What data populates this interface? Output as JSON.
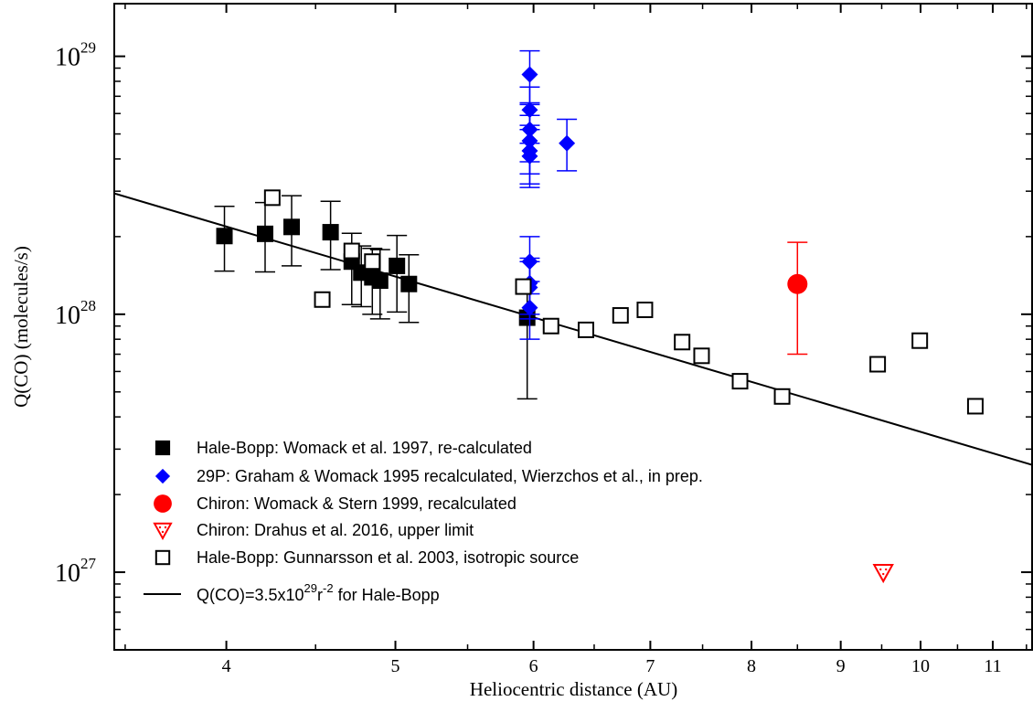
{
  "chart_data": {
    "type": "scatter",
    "x_axis": {
      "label": "Heliocentric distance (AU)",
      "scale": "log",
      "range": [
        3.45,
        11.6
      ],
      "ticks": [
        "4",
        "5",
        "6",
        "7",
        "8",
        "9",
        "10",
        "11"
      ]
    },
    "y_axis": {
      "label": "Q(CO) (molecules/s)",
      "scale": "log",
      "range": [
        5e+26,
        1.6e+29
      ],
      "ticks": [
        {
          "base": "10",
          "exp": "27",
          "value": 1e+27
        },
        {
          "base": "10",
          "exp": "28",
          "value": 1e+28
        },
        {
          "base": "10",
          "exp": "29",
          "value": 1e+29
        }
      ]
    },
    "grid": false,
    "legend_position": "bottom-left",
    "series": [
      {
        "name": "Hale-Bopp: Womack et al. 1997, re-calculated",
        "marker": "filled-square",
        "color": "#000000",
        "points": [
          {
            "x": 3.99,
            "y": 2.01e+28,
            "lo": 1.47e+28,
            "hi": 2.62e+28
          },
          {
            "x": 4.21,
            "y": 2.05e+28,
            "lo": 1.46e+28,
            "hi": 2.71e+28
          },
          {
            "x": 4.36,
            "y": 2.18e+28,
            "lo": 1.54e+28,
            "hi": 2.88e+28
          },
          {
            "x": 4.59,
            "y": 2.08e+28,
            "lo": 1.49e+28,
            "hi": 2.74e+28
          },
          {
            "x": 4.72,
            "y": 1.6e+28,
            "lo": 1.09e+28,
            "hi": 2.06e+28
          },
          {
            "x": 4.78,
            "y": 1.45e+28,
            "lo": 1.07e+28,
            "hi": 1.84e+28
          },
          {
            "x": 4.85,
            "y": 1.39e+28,
            "lo": 1e+28,
            "hi": 1.8e+28
          },
          {
            "x": 4.9,
            "y": 1.35e+28,
            "lo": 9.6e+27,
            "hi": 1.78e+28
          },
          {
            "x": 5.01,
            "y": 1.54e+28,
            "lo": 1.02e+28,
            "hi": 2.02e+28
          },
          {
            "x": 5.09,
            "y": 1.31e+28,
            "lo": 9.3e+27,
            "hi": 1.7e+28
          },
          {
            "x": 5.95,
            "y": 9.7e+27,
            "lo": 4.7e+27,
            "hi": 1.33e+28
          }
        ]
      },
      {
        "name": "29P: Graham & Womack 1995 recalculated, Wierzchos et al., in prep.",
        "marker": "diamond",
        "color": "#0000ff",
        "points": [
          {
            "x": 5.97,
            "y": 8.5e+28,
            "lo": 6.6e+28,
            "hi": 1.05e+29
          },
          {
            "x": 5.97,
            "y": 6.2e+28,
            "lo": 4.6e+28,
            "hi": 7.6e+28
          },
          {
            "x": 5.97,
            "y": 5.2e+28,
            "lo": 3.9e+28,
            "hi": 6.5e+28
          },
          {
            "x": 5.97,
            "y": 4.7e+28,
            "lo": 3.5e+28,
            "hi": 5.9e+28
          },
          {
            "x": 5.97,
            "y": 4.3e+28,
            "lo": 3.2e+28,
            "hi": 5.4e+28
          },
          {
            "x": 5.97,
            "y": 4.1e+28,
            "lo": 3.1e+28,
            "hi": 5.2e+28
          },
          {
            "x": 6.27,
            "y": 4.6e+28,
            "lo": 3.6e+28,
            "hi": 5.7e+28
          },
          {
            "x": 5.97,
            "y": 1.6e+28,
            "lo": 1.2e+28,
            "hi": 2e+28
          },
          {
            "x": 5.97,
            "y": 1.32e+28,
            "lo": 1e+28,
            "hi": 1.65e+28
          },
          {
            "x": 5.97,
            "y": 1.27e+28,
            "lo": 9.6e+27,
            "hi": 1.6e+28
          },
          {
            "x": 5.97,
            "y": 1.06e+28,
            "lo": 8e+27,
            "hi": 1.34e+28
          }
        ]
      },
      {
        "name": "Chiron: Womack & Stern 1999, recalculated",
        "marker": "circle",
        "color": "#ff0000",
        "points": [
          {
            "x": 8.5,
            "y": 1.31e+28,
            "lo": 7e+27,
            "hi": 1.9e+28
          }
        ]
      },
      {
        "name": "Chiron: Drahus et al. 2016, upper limit",
        "marker": "triangle-down",
        "color": "#ff0000",
        "points": [
          {
            "x": 9.52,
            "y": 1e+27
          }
        ]
      },
      {
        "name": "Hale-Bopp: Gunnarsson et al. 2003, isotropic source",
        "marker": "open-square",
        "color": "#000000",
        "points": [
          {
            "x": 4.25,
            "y": 2.83e+28
          },
          {
            "x": 4.54,
            "y": 1.14e+28
          },
          {
            "x": 4.72,
            "y": 1.76e+28
          },
          {
            "x": 4.85,
            "y": 1.6e+28
          },
          {
            "x": 5.92,
            "y": 1.28e+28
          },
          {
            "x": 6.14,
            "y": 9e+27
          },
          {
            "x": 6.43,
            "y": 8.7e+27
          },
          {
            "x": 6.73,
            "y": 9.9e+27
          },
          {
            "x": 6.95,
            "y": 1.04e+28
          },
          {
            "x": 7.3,
            "y": 7.8e+27
          },
          {
            "x": 7.49,
            "y": 6.9e+27
          },
          {
            "x": 7.88,
            "y": 5.5e+27
          },
          {
            "x": 8.33,
            "y": 4.8e+27
          },
          {
            "x": 9.45,
            "y": 6.4e+27
          },
          {
            "x": 9.99,
            "y": 7.9e+27
          },
          {
            "x": 10.75,
            "y": 4.4e+27
          }
        ]
      }
    ],
    "fit_line": {
      "name": "Q(CO)=3.5x10^29 r^-2 for Hale-Bopp",
      "coefficient": 3.5e+29,
      "exponent": -2,
      "color": "#000000",
      "x_range": [
        3.45,
        11.6
      ]
    },
    "legend": {
      "fit_label_parts": [
        "Q(CO)=3.5x10",
        "29",
        "r",
        "-2",
        " for Hale-Bopp"
      ]
    }
  }
}
